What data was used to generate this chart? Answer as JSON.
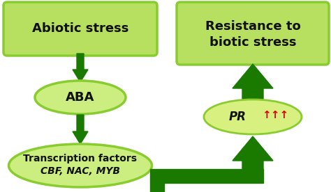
{
  "bg_color": "#ffffff",
  "dark_green": "#1a7a00",
  "lgreen_rect": "#b8e060",
  "lgreen_oval": "#ccee80",
  "lgreen_pr": "#d8f080",
  "text_color": "#111111",
  "red_color": "#dd0000",
  "abiotic_text": "Abiotic stress",
  "aba_text": "ABA",
  "tf_text_line1": "Transcription factors",
  "tf_text_line2": "CBF, NAC, MYB",
  "resist_line1": "Resistance to",
  "resist_line2": "biotic stress",
  "pr_text": "PR",
  "pr_arrows": "↑↑↑"
}
